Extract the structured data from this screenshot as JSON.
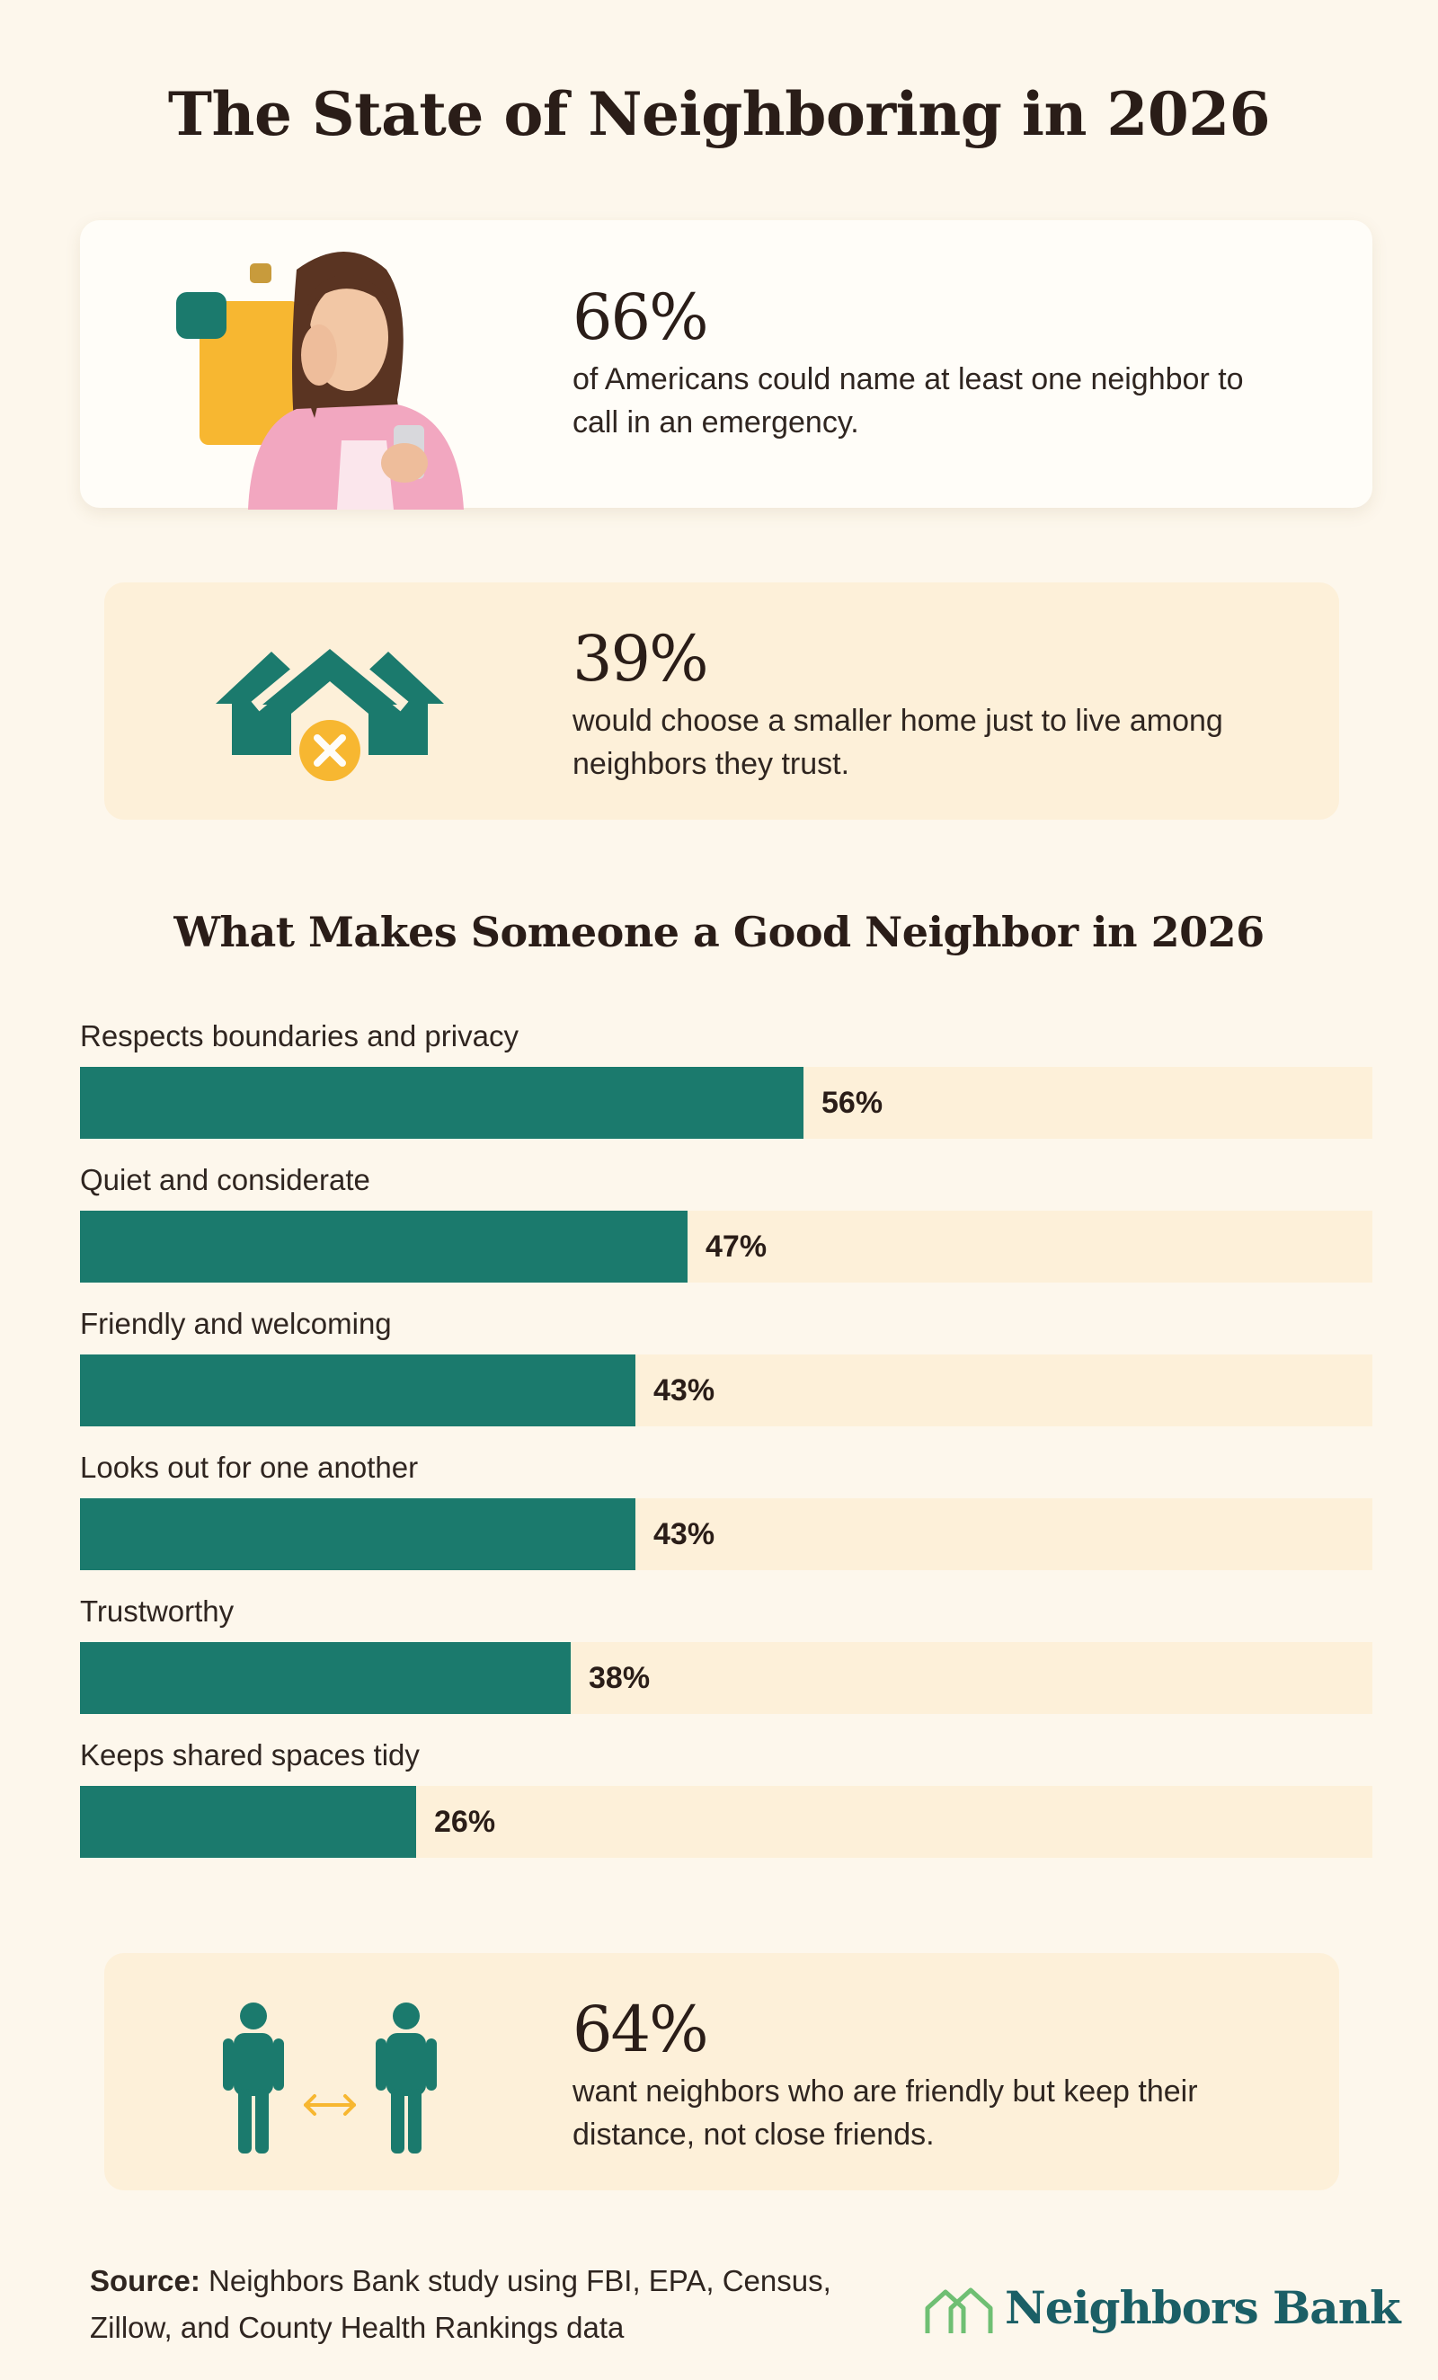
{
  "header": {
    "title": "The State of Neighboring in 2026"
  },
  "stats": [
    {
      "value": "66%",
      "text": "of Americans could name at least one neighbor to call in an emergency.",
      "icon": "woman-on-phone-photo"
    },
    {
      "value": "39%",
      "text": "would choose a smaller home just to live among neighbors they trust.",
      "icon": "houses-x-icon"
    },
    {
      "value": "64%",
      "text": "want neighbors who are friendly but keep their distance, not close friends.",
      "icon": "two-people-distance-icon"
    }
  ],
  "chart_data": {
    "type": "bar",
    "orientation": "horizontal",
    "title": "What Makes Someone a Good Neighbor in 2026",
    "categories": [
      "Respects boundaries and privacy",
      "Quiet and considerate",
      "Friendly and welcoming",
      "Looks out for one another",
      "Trustworthy",
      "Keeps shared spaces tidy"
    ],
    "values": [
      56,
      47,
      43,
      43,
      38,
      26
    ],
    "value_labels": [
      "56%",
      "47%",
      "43%",
      "43%",
      "38%",
      "26%"
    ],
    "xlim": [
      0,
      100
    ],
    "bar_color": "#1b7a6d",
    "track_color": "#fdf0d9",
    "grid": false
  },
  "footer": {
    "source_label": "Source:",
    "source_text": " Neighbors Bank study using FBI, EPA, Census, Zillow, and County Health Rankings data",
    "logo_text": "Neighbors Bank"
  },
  "colors": {
    "teal": "#1b7a6d",
    "gold": "#f7b731",
    "cream": "#fdf0d9",
    "background": "#fdf7ec"
  }
}
